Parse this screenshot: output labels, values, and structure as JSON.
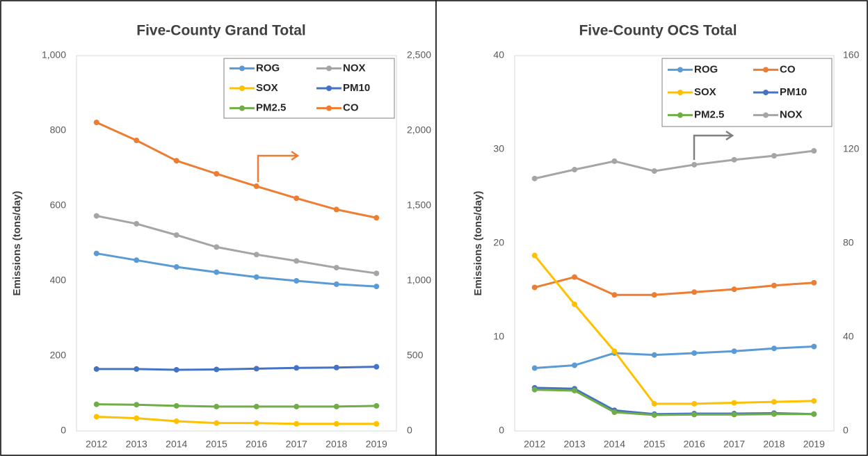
{
  "chart_data": [
    {
      "type": "line",
      "title": "Five-County Grand Total",
      "y_label": "Emissions (tons/day)",
      "categories": [
        "2012",
        "2013",
        "2014",
        "2015",
        "2016",
        "2017",
        "2018",
        "2019"
      ],
      "ylim": [
        0,
        1000
      ],
      "yticks": [
        0,
        200,
        400,
        600,
        800,
        {
          "value": 1000,
          "label": "1,000"
        }
      ],
      "y2lim": [
        0,
        2500
      ],
      "y2ticks": [
        0,
        500,
        {
          "value": 1000,
          "label": "1,000"
        },
        {
          "value": 1500,
          "label": "1,500"
        },
        {
          "value": 2000,
          "label": "2,000"
        },
        {
          "value": 2500,
          "label": "2,500"
        }
      ],
      "grid": false,
      "legend": "upper right",
      "series": [
        {
          "name": "ROG",
          "color": "#5b9bd5",
          "values": [
            473,
            455,
            437,
            423,
            410,
            400,
            391,
            385
          ]
        },
        {
          "name": "NOX",
          "color": "#a5a5a5",
          "values": [
            573,
            552,
            522,
            490,
            470,
            453,
            435,
            420
          ]
        },
        {
          "name": "SOX",
          "color": "#ffc000",
          "values": [
            38,
            34,
            26,
            21,
            21,
            19,
            19,
            19
          ]
        },
        {
          "name": "PM10",
          "color": "#4472c4",
          "values": [
            165,
            165,
            163,
            164,
            166,
            168,
            169,
            171
          ]
        },
        {
          "name": "PM2.5",
          "color": "#70ad47",
          "values": [
            71,
            70,
            67,
            65,
            65,
            65,
            65,
            67
          ]
        },
        {
          "name": "CO",
          "color": "#ed7d31",
          "axis": "y2",
          "values": [
            2055,
            1935,
            1800,
            1713,
            1630,
            1550,
            1475,
            1420
          ]
        }
      ]
    },
    {
      "type": "line",
      "title": "Five-County OCS Total",
      "y_label": "Emissions (tons/day)",
      "categories": [
        "2012",
        "2013",
        "2014",
        "2015",
        "2016",
        "2017",
        "2018",
        "2019"
      ],
      "ylim": [
        0,
        40
      ],
      "yticks": [
        0,
        10,
        20,
        30,
        40
      ],
      "y2lim": [
        0,
        160
      ],
      "y2ticks": [
        0,
        40,
        80,
        120,
        160
      ],
      "grid": false,
      "legend": "upper right",
      "series": [
        {
          "name": "ROG",
          "color": "#5b9bd5",
          "values": [
            6.7,
            7.0,
            8.3,
            8.1,
            8.3,
            8.5,
            8.8,
            9.0
          ]
        },
        {
          "name": "CO",
          "color": "#ed7d31",
          "values": [
            15.3,
            16.4,
            14.5,
            14.5,
            14.8,
            15.1,
            15.5,
            15.8
          ]
        },
        {
          "name": "SOX",
          "color": "#ffc000",
          "values": [
            18.7,
            13.5,
            8.5,
            2.9,
            2.9,
            3.0,
            3.1,
            3.2
          ]
        },
        {
          "name": "PM10",
          "color": "#4472c4",
          "values": [
            4.6,
            4.5,
            2.2,
            1.8,
            1.85,
            1.85,
            1.9,
            1.8
          ]
        },
        {
          "name": "PM2.5",
          "color": "#70ad47",
          "values": [
            4.4,
            4.3,
            2.0,
            1.7,
            1.75,
            1.75,
            1.8,
            1.8
          ]
        },
        {
          "name": "NOX",
          "color": "#a5a5a5",
          "axis": "y2",
          "values": [
            107.6,
            111.4,
            115,
            110.8,
            113.5,
            115.6,
            117.3,
            119.4
          ]
        }
      ]
    }
  ]
}
